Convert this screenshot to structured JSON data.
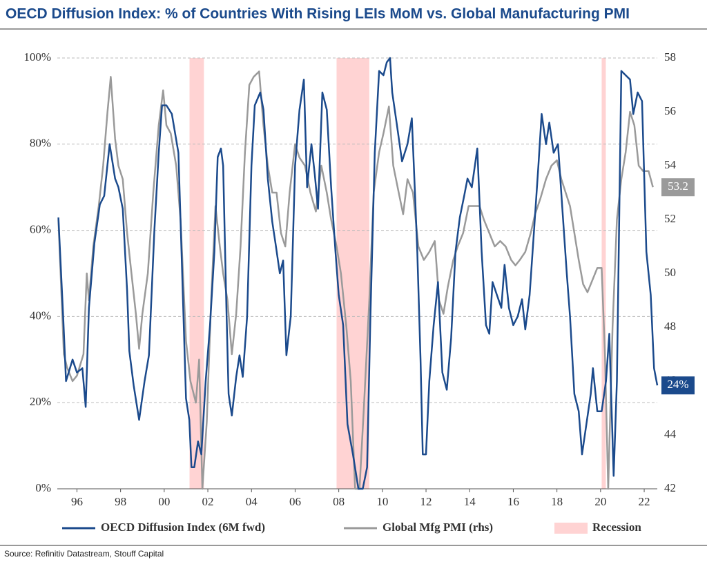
{
  "chart_data": {
    "type": "line",
    "title": "OECD Diffusion Index: % of Countries With Rising LEIs MoM vs. Global Manufacturing PMI",
    "source": "Source: Refinitiv Datastream, Stouff Capital",
    "xlim": [
      1995.1,
      2022.6
    ],
    "xticks": [
      {
        "value": 1996,
        "label": "96"
      },
      {
        "value": 1998,
        "label": "98"
      },
      {
        "value": 2000,
        "label": "00"
      },
      {
        "value": 2002,
        "label": "02"
      },
      {
        "value": 2004,
        "label": "04"
      },
      {
        "value": 2006,
        "label": "06"
      },
      {
        "value": 2008,
        "label": "08"
      },
      {
        "value": 2010,
        "label": "10"
      },
      {
        "value": 2012,
        "label": "12"
      },
      {
        "value": 2014,
        "label": "14"
      },
      {
        "value": 2016,
        "label": "16"
      },
      {
        "value": 2018,
        "label": "18"
      },
      {
        "value": 2020,
        "label": "20"
      },
      {
        "value": 2022,
        "label": "22"
      }
    ],
    "ylim": [
      0,
      100
    ],
    "yticks": [
      {
        "value": 0,
        "label": "0%"
      },
      {
        "value": 20,
        "label": "20%"
      },
      {
        "value": 40,
        "label": "40%"
      },
      {
        "value": 60,
        "label": "60%"
      },
      {
        "value": 80,
        "label": "80%"
      },
      {
        "value": 100,
        "label": "100%"
      }
    ],
    "y2lim": [
      42,
      58
    ],
    "y2ticks": [
      42,
      44,
      46,
      48,
      50,
      52,
      54,
      56,
      58
    ],
    "grid": true,
    "recession_name": "Recession",
    "recession_color": "#ffd3d3",
    "recessions": [
      {
        "start": 2001.16,
        "end": 2001.82
      },
      {
        "start": 2007.9,
        "end": 2009.4
      },
      {
        "start": 2020.05,
        "end": 2020.24
      }
    ],
    "series": [
      {
        "name": "OECD Diffusion Index (6M fwd)",
        "color": "#1b4a8c",
        "axis": "y",
        "end_label": "24%",
        "x": [
          1995.15,
          1995.37,
          1995.5,
          1995.8,
          1996.0,
          1996.25,
          1996.4,
          1996.55,
          1996.8,
          1997.05,
          1997.25,
          1997.5,
          1997.75,
          1997.9,
          1998.1,
          1998.3,
          1998.4,
          1998.6,
          1998.85,
          1999.1,
          1999.3,
          1999.55,
          1999.75,
          1999.9,
          2000.1,
          2000.35,
          2000.65,
          2000.8,
          2001.0,
          2001.15,
          2001.25,
          2001.38,
          2001.55,
          2001.7,
          2001.9,
          2002.1,
          2002.3,
          2002.45,
          2002.6,
          2002.7,
          2002.85,
          2002.95,
          2003.1,
          2003.3,
          2003.45,
          2003.6,
          2003.8,
          2004.0,
          2004.15,
          2004.4,
          2004.55,
          2004.75,
          2004.95,
          2005.1,
          2005.3,
          2005.45,
          2005.6,
          2005.8,
          2006.0,
          2006.2,
          2006.4,
          2006.55,
          2006.75,
          2006.9,
          2007.05,
          2007.25,
          2007.45,
          2007.65,
          2007.85,
          2008.0,
          2008.2,
          2008.4,
          2008.65,
          2008.9,
          2009.1,
          2009.3,
          2009.45,
          2009.65,
          2009.85,
          2010.05,
          2010.2,
          2010.35,
          2010.45,
          2010.65,
          2010.9,
          2011.15,
          2011.35,
          2011.5,
          2011.6,
          2011.75,
          2011.85,
          2012.0,
          2012.15,
          2012.35,
          2012.55,
          2012.75,
          2012.95,
          2013.15,
          2013.35,
          2013.55,
          2013.75,
          2013.9,
          2014.1,
          2014.35,
          2014.55,
          2014.75,
          2014.9,
          2015.05,
          2015.25,
          2015.45,
          2015.6,
          2015.8,
          2016.0,
          2016.2,
          2016.4,
          2016.55,
          2016.75,
          2016.95,
          2017.15,
          2017.3,
          2017.5,
          2017.65,
          2017.85,
          2018.05,
          2018.25,
          2018.45,
          2018.6,
          2018.8,
          2019.0,
          2019.15,
          2019.35,
          2019.55,
          2019.65,
          2019.85,
          2020.05,
          2020.25,
          2020.4,
          2020.6,
          2020.75,
          2020.95,
          2021.15,
          2021.35,
          2021.5,
          2021.7,
          2021.9,
          2022.1,
          2022.3,
          2022.45,
          2022.6
        ],
        "values": [
          63,
          40,
          25,
          30,
          27,
          28,
          19,
          42,
          57,
          66,
          68,
          80,
          72,
          70,
          65,
          46,
          32,
          24,
          16,
          25,
          31,
          60,
          78,
          89,
          89,
          87,
          78,
          54,
          21,
          16,
          5,
          5,
          11,
          8,
          25,
          38,
          55,
          77,
          79,
          75,
          42,
          22,
          17,
          26,
          31,
          26,
          40,
          75,
          89,
          92,
          88,
          72,
          62,
          57,
          50,
          53,
          31,
          40,
          75,
          88,
          95,
          70,
          80,
          73,
          65,
          92,
          88,
          70,
          55,
          45,
          38,
          15,
          8,
          0,
          0,
          5,
          40,
          78,
          97,
          96,
          99,
          100,
          92,
          85,
          76,
          80,
          86,
          68,
          55,
          30,
          8,
          8,
          25,
          38,
          48,
          27,
          23,
          35,
          55,
          63,
          68,
          72,
          70,
          79,
          55,
          38,
          36,
          48,
          45,
          42,
          52,
          42,
          38,
          40,
          44,
          37,
          45,
          60,
          75,
          87,
          80,
          85,
          78,
          80,
          65,
          50,
          40,
          22,
          18,
          8,
          15,
          22,
          28,
          18,
          18,
          25,
          36,
          3,
          25,
          97,
          96,
          95,
          87,
          92,
          90,
          55,
          45,
          28,
          24
        ]
      },
      {
        "name": "Global Mfg PMI (rhs)",
        "color": "#9a9a9a",
        "axis": "y2",
        "end_label": "53.2",
        "x": [
          1995.15,
          1995.4,
          1995.55,
          1995.8,
          1996.0,
          1996.3,
          1996.45,
          1996.55,
          1996.75,
          1997.0,
          1997.2,
          1997.4,
          1997.55,
          1997.75,
          1997.9,
          1998.1,
          1998.3,
          1998.5,
          1998.7,
          1998.85,
          1999.0,
          1999.25,
          1999.5,
          1999.75,
          1999.95,
          2000.1,
          2000.3,
          2000.55,
          2000.75,
          2001.0,
          2001.2,
          2001.45,
          2001.6,
          2001.75,
          2001.95,
          2002.15,
          2002.35,
          2002.55,
          2002.7,
          2002.9,
          2003.1,
          2003.3,
          2003.5,
          2003.7,
          2003.9,
          2004.1,
          2004.35,
          2004.55,
          2004.75,
          2004.95,
          2005.15,
          2005.35,
          2005.55,
          2005.75,
          2006.0,
          2006.2,
          2006.45,
          2006.7,
          2006.95,
          2007.2,
          2007.45,
          2007.65,
          2007.9,
          2008.1,
          2008.35,
          2008.55,
          2008.75,
          2008.95,
          2009.15,
          2009.4,
          2009.6,
          2009.85,
          2010.05,
          2010.3,
          2010.5,
          2010.75,
          2010.95,
          2011.15,
          2011.4,
          2011.65,
          2011.9,
          2012.15,
          2012.4,
          2012.6,
          2012.8,
          2013.0,
          2013.25,
          2013.45,
          2013.7,
          2013.95,
          2014.2,
          2014.45,
          2014.65,
          2014.9,
          2015.15,
          2015.4,
          2015.65,
          2015.9,
          2016.1,
          2016.3,
          2016.55,
          2016.8,
          2017.0,
          2017.25,
          2017.5,
          2017.75,
          2018.0,
          2018.2,
          2018.4,
          2018.6,
          2018.8,
          2019.0,
          2019.2,
          2019.4,
          2019.65,
          2019.85,
          2020.05,
          2020.2,
          2020.35,
          2020.55,
          2020.75,
          2020.95,
          2021.15,
          2021.35,
          2021.55,
          2021.75,
          2021.95,
          2022.2,
          2022.4
        ],
        "values": [
          52,
          47,
          46.5,
          46,
          46.2,
          47,
          50,
          49,
          51,
          52.5,
          54,
          56,
          57.3,
          55,
          54,
          53.5,
          51.5,
          50,
          48.5,
          47.2,
          48.5,
          50,
          53,
          55.5,
          56.8,
          55.5,
          55.2,
          54,
          52,
          47.5,
          46,
          45.2,
          46.8,
          42,
          44.5,
          49,
          52.5,
          51,
          50,
          49,
          47,
          48.5,
          51,
          54.5,
          57,
          57.3,
          57.5,
          55.5,
          54,
          53,
          53,
          51.5,
          51,
          53,
          54.8,
          54.3,
          54,
          53,
          52.3,
          54,
          53,
          52,
          51,
          50,
          48,
          46,
          42,
          42,
          45,
          49,
          53,
          54.5,
          55.2,
          56.2,
          54,
          53,
          52.2,
          53.5,
          53,
          51,
          50.5,
          50.8,
          51.2,
          49,
          48.5,
          49.5,
          50.5,
          51,
          51.5,
          52.5,
          52.5,
          52.5,
          52,
          51.5,
          51,
          51.2,
          51,
          50.5,
          50.3,
          50.5,
          50.8,
          51.5,
          52.2,
          52.8,
          53.5,
          54,
          54.2,
          53.5,
          53,
          52.5,
          51.5,
          50.5,
          49.6,
          49.3,
          49.8,
          50.2,
          50.2,
          47,
          42,
          48,
          52,
          53.5,
          54.5,
          56,
          55.5,
          54,
          53.8,
          53.8,
          53.2
        ]
      }
    ]
  }
}
